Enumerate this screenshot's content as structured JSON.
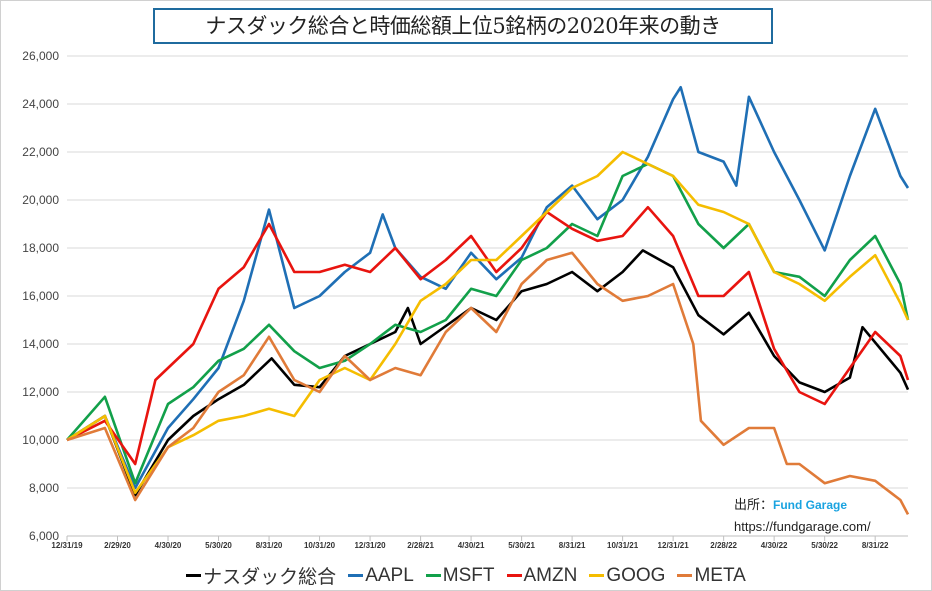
{
  "chart_data": {
    "type": "line",
    "title": "ナスダック総合と時価総額上位5銘柄の2020年来の動き",
    "xlabel": "",
    "ylabel": "",
    "ylim": [
      6000,
      26000
    ],
    "yticks": [
      6000,
      8000,
      10000,
      12000,
      14000,
      16000,
      18000,
      20000,
      22000,
      24000,
      26000
    ],
    "ytick_labels": [
      "6,000",
      "8,000",
      "10,000",
      "12,000",
      "14,000",
      "16,000",
      "18,000",
      "20,000",
      "22,000",
      "24,000",
      "26,000"
    ],
    "x_unit": "months since 12/31/19",
    "xlim": [
      0,
      33.3
    ],
    "xtick_positions": [
      0,
      2,
      4,
      6,
      8,
      10,
      12,
      14,
      16,
      18,
      20,
      22,
      24,
      26,
      28,
      30,
      32
    ],
    "xtick_labels": [
      "12/31/19",
      "2/29/20",
      "4/30/20",
      "5/30/20",
      "8/31/20",
      "10/31/20",
      "12/31/20",
      "2/28/21",
      "4/30/21",
      "5/30/21",
      "8/31/21",
      "10/31/21",
      "12/31/21",
      "2/28/22",
      "4/30/22",
      "5/30/22",
      "8/31/22"
    ],
    "grid": true,
    "legend_position": "bottom",
    "series": [
      {
        "name": "ナスダック総合",
        "color": "#000000",
        "x": [
          0,
          1.5,
          2.7,
          4,
          5,
          6,
          7,
          8.1,
          9,
          10,
          11,
          12,
          13,
          13.5,
          14,
          16,
          17,
          18,
          19,
          20,
          21,
          22,
          22.8,
          24,
          25,
          26,
          27,
          28,
          29,
          30,
          31,
          31.5,
          33,
          33.3
        ],
        "y": [
          10000,
          11000,
          7700,
          10000,
          11000,
          11700,
          12300,
          13400,
          12300,
          12200,
          13500,
          14000,
          14500,
          15500,
          14000,
          15500,
          15000,
          16200,
          16500,
          17000,
          16200,
          17000,
          17900,
          17200,
          15200,
          14400,
          15300,
          13500,
          12400,
          12000,
          12600,
          14700,
          12800,
          12100
        ]
      },
      {
        "name": "AAPL",
        "color": "#1f6fb5",
        "x": [
          0,
          1.5,
          2.7,
          4,
          5,
          6,
          7,
          8,
          9,
          10,
          11,
          12,
          12.5,
          13,
          14,
          15,
          16,
          17,
          18,
          19,
          20,
          21,
          22,
          23,
          24,
          24.3,
          25,
          26,
          26.5,
          27,
          28,
          29,
          30,
          31,
          32,
          33,
          33.3
        ],
        "y": [
          10000,
          11000,
          8000,
          10500,
          11700,
          13000,
          15800,
          19600,
          15500,
          16000,
          17000,
          17800,
          19400,
          18000,
          16800,
          16300,
          17800,
          16700,
          17600,
          19700,
          20600,
          19200,
          20000,
          21800,
          24200,
          24700,
          22000,
          21600,
          20600,
          24300,
          22000,
          20000,
          17900,
          21000,
          23800,
          21000,
          20500
        ]
      },
      {
        "name": "MSFT",
        "color": "#12a04a",
        "x": [
          0,
          1.5,
          2.7,
          4,
          5,
          6,
          7,
          8,
          9,
          10,
          11,
          12,
          13,
          14,
          15,
          16,
          17,
          18,
          19,
          20,
          21,
          22,
          23,
          24,
          25,
          26,
          27,
          28,
          29,
          30,
          31,
          32,
          33,
          33.3
        ],
        "y": [
          10000,
          11800,
          8200,
          11500,
          12200,
          13300,
          13800,
          14800,
          13700,
          13000,
          13300,
          14000,
          14800,
          14500,
          15000,
          16300,
          16000,
          17500,
          18000,
          19000,
          18500,
          21000,
          21500,
          21000,
          19000,
          18000,
          19000,
          17000,
          16800,
          16000,
          17500,
          18500,
          16500,
          15000
        ]
      },
      {
        "name": "AMZN",
        "color": "#e8140f",
        "x": [
          0,
          1.5,
          2.7,
          3.5,
          4,
          5,
          6,
          7,
          8,
          9,
          10,
          11,
          12,
          13,
          14,
          15,
          16,
          17,
          18,
          19,
          20,
          21,
          22,
          23,
          24,
          25,
          26,
          27,
          28,
          29,
          30,
          31,
          32,
          33,
          33.3
        ],
        "y": [
          10000,
          10800,
          9000,
          12500,
          13000,
          14000,
          16300,
          17200,
          19000,
          17000,
          17000,
          17300,
          17000,
          18000,
          16700,
          17500,
          18500,
          17000,
          18000,
          19500,
          18800,
          18300,
          18500,
          19700,
          18500,
          16000,
          16000,
          17000,
          13800,
          12000,
          11500,
          13000,
          14500,
          13500,
          12500
        ]
      },
      {
        "name": "GOOG",
        "color": "#f5bd00",
        "x": [
          0,
          1.5,
          2.7,
          4,
          5,
          6,
          7,
          8,
          9,
          10,
          11,
          12,
          13,
          14,
          15,
          16,
          17,
          18,
          19,
          20,
          21,
          22,
          23,
          24,
          25,
          26,
          27,
          28,
          29,
          30,
          31,
          32,
          33,
          33.3
        ],
        "y": [
          10000,
          11000,
          7800,
          9700,
          10200,
          10800,
          11000,
          11300,
          11000,
          12500,
          13000,
          12500,
          14000,
          15800,
          16500,
          17500,
          17500,
          18500,
          19500,
          20500,
          21000,
          22000,
          21500,
          21000,
          19800,
          19500,
          19000,
          17000,
          16500,
          15800,
          16800,
          17700,
          15700,
          15000
        ]
      },
      {
        "name": "META",
        "color": "#e07b39",
        "x": [
          0,
          1.5,
          2.7,
          4,
          5,
          6,
          7,
          8,
          9,
          10,
          11,
          12,
          13,
          14,
          15,
          16,
          17,
          18,
          19,
          20,
          21,
          22,
          23,
          24,
          24.8,
          25.1,
          26,
          27,
          28,
          28.5,
          29,
          30,
          31,
          32,
          33,
          33.3
        ],
        "y": [
          10000,
          10500,
          7500,
          9700,
          10500,
          12000,
          12700,
          14300,
          12500,
          12000,
          13500,
          12500,
          13000,
          12700,
          14500,
          15500,
          14500,
          16500,
          17500,
          17800,
          16500,
          15800,
          16000,
          16500,
          14000,
          10800,
          9800,
          10500,
          10500,
          9000,
          9000,
          8200,
          8500,
          8300,
          7500,
          6900
        ]
      }
    ]
  },
  "source": {
    "label": "出所：",
    "brand": "Fund Garage",
    "url": "https://fundgarage.com/"
  }
}
